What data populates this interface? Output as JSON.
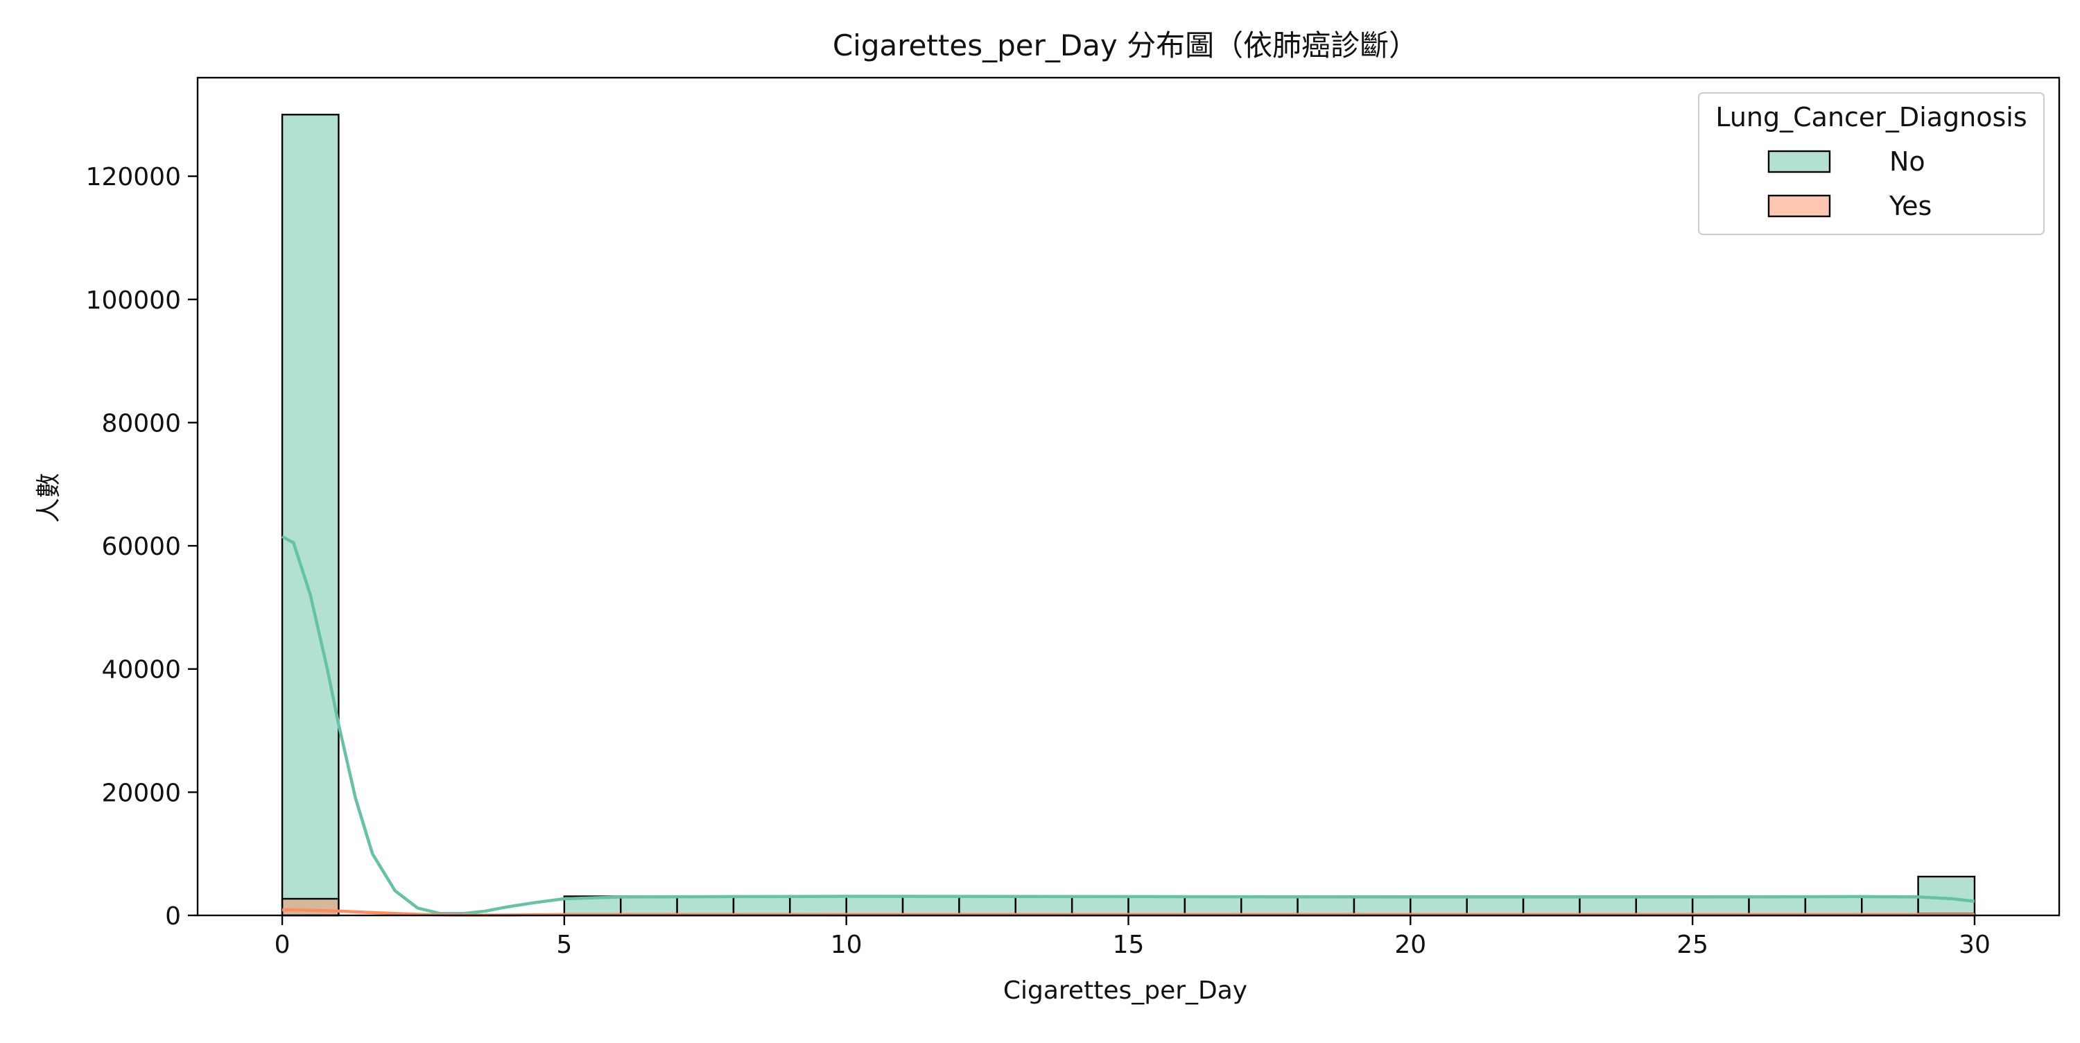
{
  "chart_data": {
    "type": "bar",
    "title": "Cigarettes_per_Day 分布圖（依肺癌診斷）",
    "xlabel": "Cigarettes_per_Day",
    "ylabel": "人數",
    "xlim": [
      -1.5,
      31.5
    ],
    "ylim": [
      0,
      136000
    ],
    "xticks": [
      0,
      5,
      10,
      15,
      20,
      25,
      30
    ],
    "yticks": [
      0,
      20000,
      40000,
      60000,
      80000,
      100000,
      120000
    ],
    "grid": false,
    "legend": {
      "title": "Lung_Cancer_Diagnosis",
      "placement": "top-right"
    },
    "bins": [
      [
        0,
        1
      ],
      [
        1,
        2
      ],
      [
        2,
        3
      ],
      [
        3,
        4
      ],
      [
        4,
        5
      ],
      [
        5,
        6
      ],
      [
        6,
        7
      ],
      [
        7,
        8
      ],
      [
        8,
        9
      ],
      [
        9,
        10
      ],
      [
        10,
        11
      ],
      [
        11,
        12
      ],
      [
        12,
        13
      ],
      [
        13,
        14
      ],
      [
        14,
        15
      ],
      [
        15,
        16
      ],
      [
        16,
        17
      ],
      [
        17,
        18
      ],
      [
        18,
        19
      ],
      [
        19,
        20
      ],
      [
        20,
        21
      ],
      [
        21,
        22
      ],
      [
        22,
        23
      ],
      [
        23,
        24
      ],
      [
        24,
        25
      ],
      [
        25,
        26
      ],
      [
        26,
        27
      ],
      [
        27,
        28
      ],
      [
        28,
        29
      ],
      [
        29,
        30
      ]
    ],
    "series": [
      {
        "name": "No",
        "color": "#66c2a5",
        "fill_opacity": 0.5,
        "values": [
          130000,
          0,
          0,
          0,
          0,
          3100,
          3100,
          3100,
          3100,
          3100,
          3100,
          3100,
          3100,
          3100,
          3100,
          3100,
          3100,
          3100,
          3100,
          3100,
          3100,
          3100,
          3100,
          3100,
          3100,
          3100,
          3100,
          3100,
          3100,
          6300
        ],
        "kde": [
          [
            0,
            61500
          ],
          [
            0.2,
            60500
          ],
          [
            0.5,
            52000
          ],
          [
            0.8,
            40000
          ],
          [
            1.0,
            31000
          ],
          [
            1.3,
            19000
          ],
          [
            1.6,
            10000
          ],
          [
            2.0,
            4000
          ],
          [
            2.4,
            1200
          ],
          [
            2.8,
            300
          ],
          [
            3.2,
            300
          ],
          [
            3.6,
            700
          ],
          [
            4.0,
            1400
          ],
          [
            4.5,
            2100
          ],
          [
            5.0,
            2700
          ],
          [
            6.0,
            3000
          ],
          [
            8.0,
            3050
          ],
          [
            10.0,
            3100
          ],
          [
            15.0,
            3050
          ],
          [
            20.0,
            3000
          ],
          [
            25.0,
            3000
          ],
          [
            28.0,
            3050
          ],
          [
            29.0,
            3000
          ],
          [
            29.6,
            2700
          ],
          [
            30.0,
            2300
          ]
        ]
      },
      {
        "name": "Yes",
        "color": "#fc8d62",
        "fill_opacity": 0.5,
        "values": [
          2700,
          0,
          0,
          0,
          0,
          150,
          150,
          150,
          150,
          150,
          150,
          150,
          150,
          150,
          150,
          150,
          150,
          150,
          150,
          150,
          150,
          150,
          150,
          150,
          150,
          150,
          150,
          150,
          150,
          300
        ],
        "kde": [
          [
            0,
            900
          ],
          [
            0.5,
            850
          ],
          [
            1.0,
            700
          ],
          [
            1.5,
            500
          ],
          [
            2.0,
            300
          ],
          [
            2.5,
            150
          ],
          [
            3.0,
            60
          ],
          [
            3.5,
            40
          ],
          [
            4.0,
            60
          ],
          [
            5.0,
            120
          ],
          [
            10.0,
            140
          ],
          [
            20.0,
            140
          ],
          [
            30.0,
            130
          ]
        ]
      }
    ]
  }
}
